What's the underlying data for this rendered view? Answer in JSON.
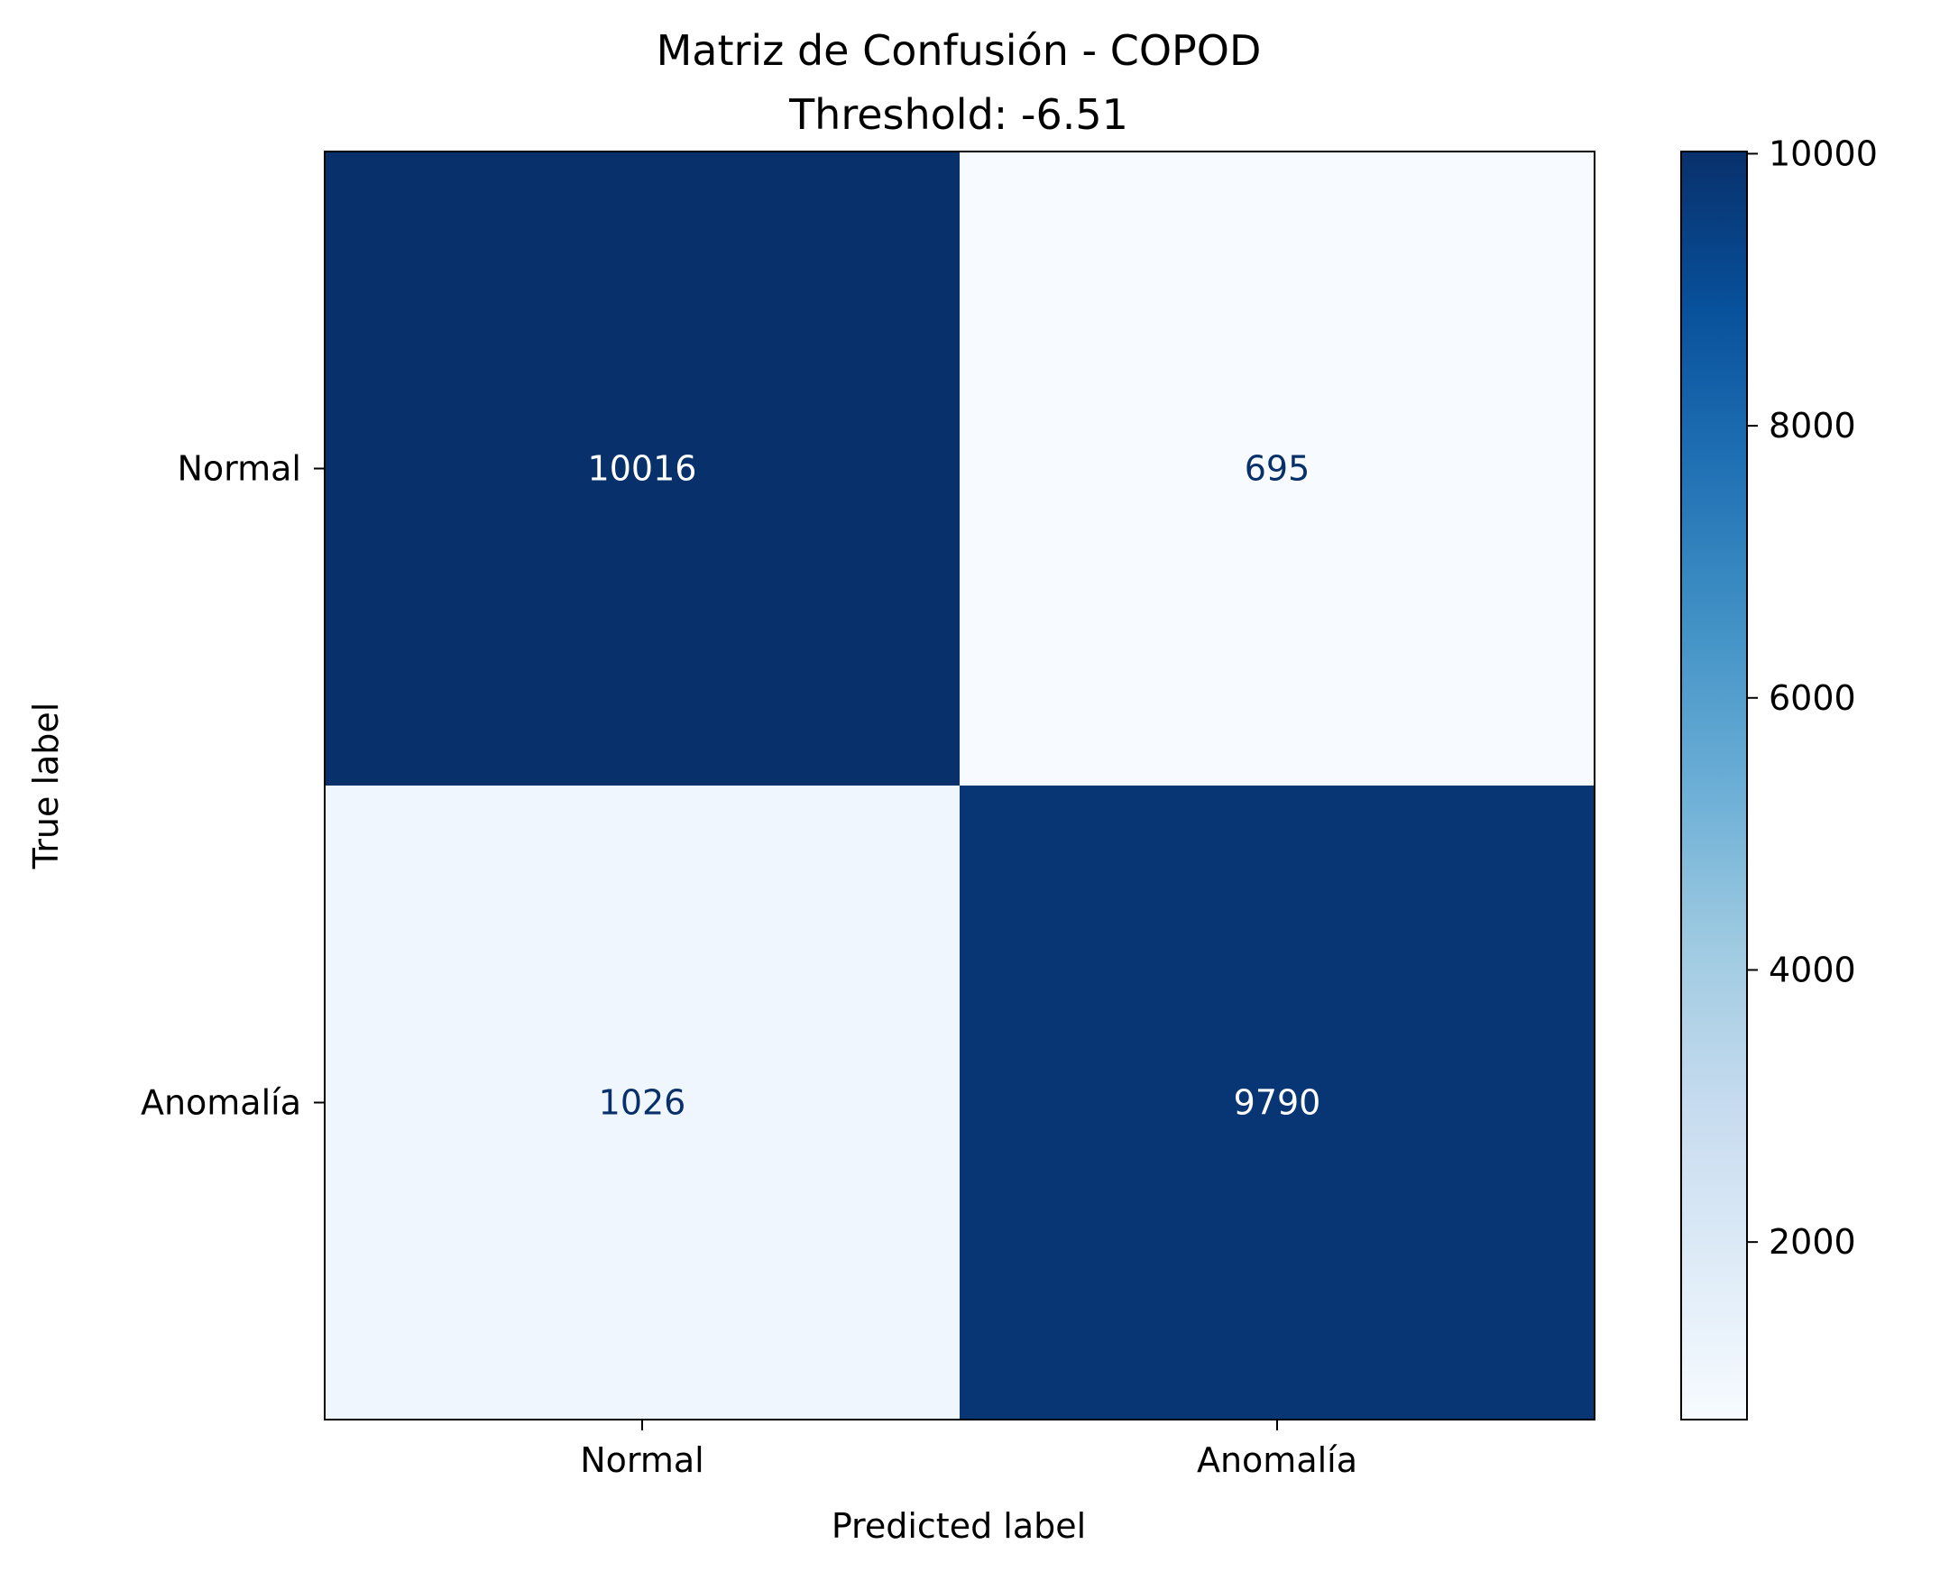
{
  "chart_data": {
    "type": "heatmap",
    "title": "Matriz de Confusión - COPOD",
    "subtitle": "Threshold: -6.51",
    "xlabel": "Predicted label",
    "ylabel": "True label",
    "x_categories": [
      "Normal",
      "Anomalía"
    ],
    "y_categories": [
      "Normal",
      "Anomalía"
    ],
    "matrix": [
      [
        10016,
        695
      ],
      [
        1026,
        9790
      ]
    ],
    "colorscale": "Blues",
    "colorbar": {
      "range": [
        695,
        10016
      ],
      "ticks": [
        2000,
        4000,
        6000,
        8000,
        10000
      ]
    },
    "colors": {
      "dark": "#08306b",
      "light": "#f7fbff",
      "text_on_dark": "#ffffff",
      "text_on_light": "#08306b"
    }
  }
}
